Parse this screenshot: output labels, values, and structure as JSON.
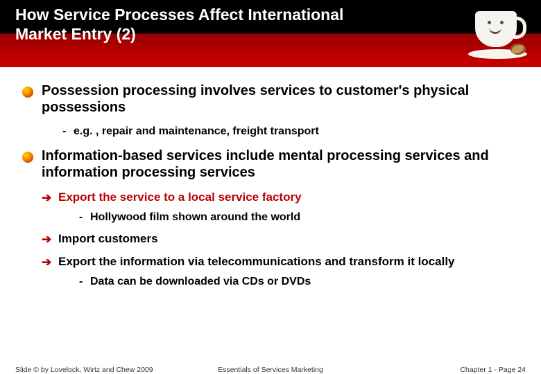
{
  "header": {
    "title": "How Service Processes Affect International Market Entry (2)",
    "title_color": "#ffffff",
    "title_fontsize": 23,
    "gradient_top": "#000000",
    "gradient_bottom": "#cc0000"
  },
  "bullets": {
    "level1_icon_gradient": [
      "#ffcc00",
      "#ff9900",
      "#cc5500",
      "#662200"
    ],
    "arrow_color": "#bb0000",
    "items": [
      {
        "text": "Possession processing involves services to customer's physical possessions",
        "subs": [
          {
            "type": "dash",
            "text": "e.g. , repair and maintenance, freight transport"
          }
        ]
      },
      {
        "text": "Information-based services include mental processing services and information processing services",
        "subs": [
          {
            "type": "arrow",
            "color": "red",
            "text": "Export the service to a local service factory",
            "subs": [
              {
                "type": "dash",
                "text": "Hollywood film shown around the world"
              }
            ]
          },
          {
            "type": "arrow",
            "color": "black",
            "text": "Import customers"
          },
          {
            "type": "arrow",
            "color": "black",
            "text": "Export the information via telecommunications and transform it locally",
            "subs": [
              {
                "type": "dash",
                "text": "Data can be downloaded via CDs or DVDs"
              }
            ]
          }
        ]
      }
    ]
  },
  "footer": {
    "left": "Slide © by Lovelock, Wirtz and Chew 2009",
    "center": "Essentials of Services Marketing",
    "right": "Chapter 1 - Page 24"
  },
  "typography": {
    "body_font": "Arial",
    "bullet1_fontsize": 20,
    "sub_fontsize": 16,
    "arrow_fontsize": 17,
    "footer_fontsize": 10.5
  },
  "colors": {
    "background": "#ffffff",
    "text": "#000000",
    "accent_red": "#bb0000",
    "footer_text": "#333333"
  }
}
